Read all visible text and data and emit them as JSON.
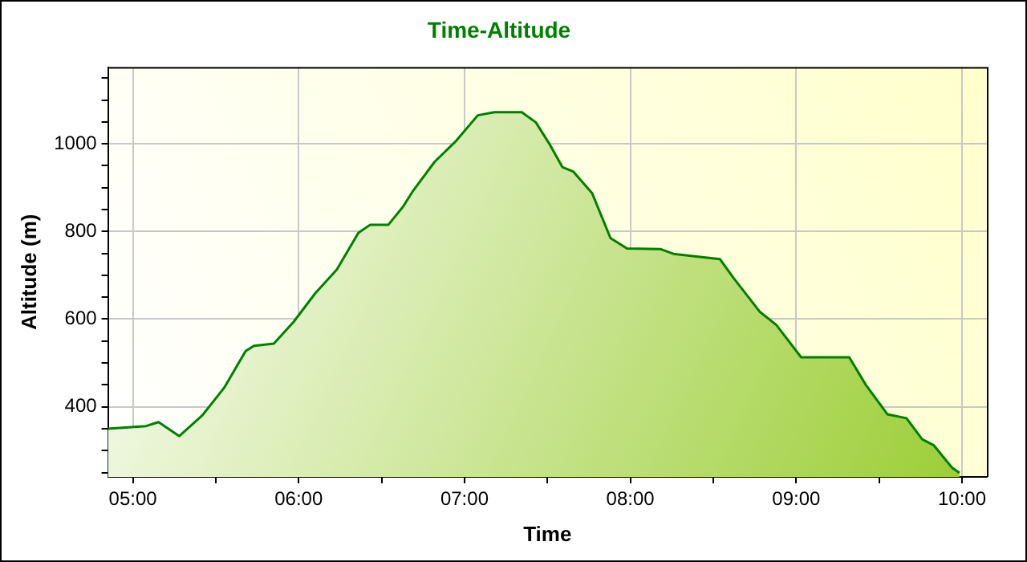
{
  "chart_data": {
    "type": "area",
    "title": "Time-Altitude",
    "xlabel": "Time",
    "ylabel": "Altitude (m)",
    "x": [
      4.85,
      5.08,
      5.155,
      5.28,
      5.42,
      5.55,
      5.68,
      5.73,
      5.85,
      5.97,
      6.1,
      6.23,
      6.36,
      6.43,
      6.54,
      6.63,
      6.69,
      6.82,
      6.95,
      7.08,
      7.18,
      7.345,
      7.43,
      7.51,
      7.59,
      7.655,
      7.77,
      7.88,
      7.98,
      8.18,
      8.26,
      8.54,
      8.62,
      8.78,
      8.88,
      9.03,
      9.32,
      9.42,
      9.55,
      9.665,
      9.76,
      9.83,
      9.94,
      9.985
    ],
    "series": [
      {
        "color": "#008000",
        "values": [
          350,
          356,
          365,
          333,
          381,
          443,
          527,
          539,
          544,
          594,
          659,
          713,
          797,
          815,
          815,
          857,
          893,
          959,
          1007,
          1065,
          1072,
          1072,
          1049,
          1001,
          947,
          937,
          887,
          785,
          761,
          760,
          749,
          737,
          695,
          617,
          587,
          513,
          513,
          450,
          383,
          374,
          326,
          312,
          261,
          249
        ]
      }
    ],
    "xlim": [
      4.85,
      10.15
    ],
    "ylim": [
      240,
      1175
    ],
    "xticks": [
      {
        "value": 5,
        "label": "05:00"
      },
      {
        "value": 5.5,
        "label": null
      },
      {
        "value": 6,
        "label": "06:00"
      },
      {
        "value": 6.5,
        "label": null
      },
      {
        "value": 7,
        "label": "07:00"
      },
      {
        "value": 7.5,
        "label": null
      },
      {
        "value": 8,
        "label": "08:00"
      },
      {
        "value": 8.5,
        "label": null
      },
      {
        "value": 9,
        "label": "09:00"
      },
      {
        "value": 9.5,
        "label": null
      },
      {
        "value": 10,
        "label": "10:00"
      }
    ],
    "yticks": [
      {
        "value": 250,
        "label": null
      },
      {
        "value": 300,
        "label": null
      },
      {
        "value": 350,
        "label": null
      },
      400,
      {
        "value": 450,
        "label": null
      },
      {
        "value": 500,
        "label": null
      },
      {
        "value": 550,
        "label": null
      },
      600,
      {
        "value": 650,
        "label": null
      },
      {
        "value": 700,
        "label": null
      },
      {
        "value": 750,
        "label": null
      },
      800,
      {
        "value": 850,
        "label": null
      },
      {
        "value": 900,
        "label": null
      },
      {
        "value": 950,
        "label": null
      },
      1000,
      {
        "value": 1050,
        "label": null
      },
      {
        "value": 1100,
        "label": null
      },
      {
        "value": 1150,
        "label": null
      }
    ],
    "grid": true,
    "marker": "none",
    "line_style": "solid",
    "legend": false
  }
}
